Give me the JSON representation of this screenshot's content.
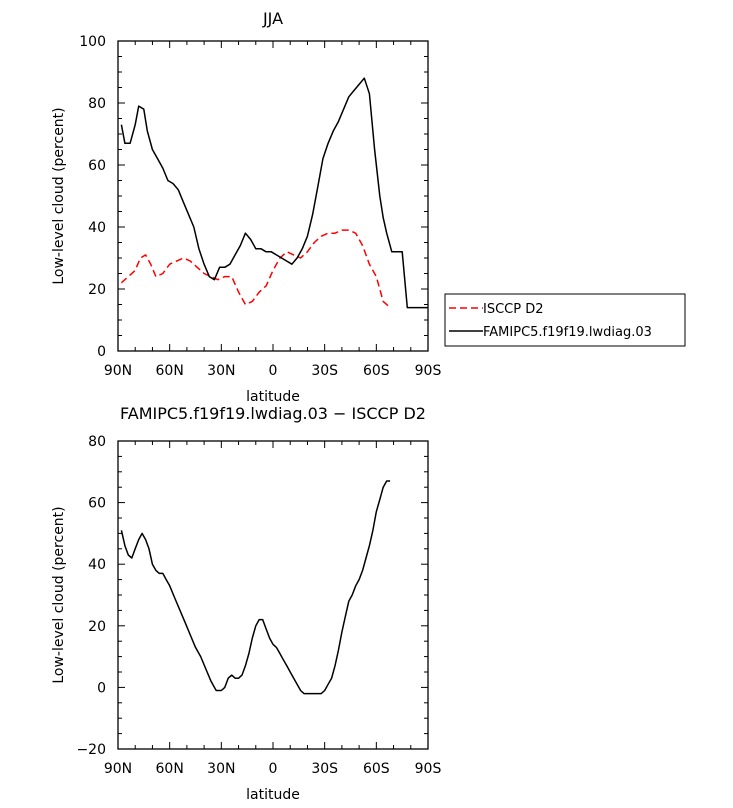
{
  "chart_data": [
    {
      "type": "line",
      "title": "JJA",
      "xlabel": "latitude",
      "ylabel": "Low-level cloud (percent)",
      "xlim": [
        90,
        -90
      ],
      "ylim": [
        0,
        100
      ],
      "xticks": [
        {
          "value": 90,
          "label": "90N"
        },
        {
          "value": 60,
          "label": "60N"
        },
        {
          "value": 30,
          "label": "30N"
        },
        {
          "value": 0,
          "label": "0"
        },
        {
          "value": -30,
          "label": "30S"
        },
        {
          "value": -60,
          "label": "60S"
        },
        {
          "value": -90,
          "label": "90S"
        }
      ],
      "yticks": [
        {
          "value": 0,
          "label": "0"
        },
        {
          "value": 20,
          "label": "20"
        },
        {
          "value": 40,
          "label": "40"
        },
        {
          "value": 60,
          "label": "60"
        },
        {
          "value": 80,
          "label": "80"
        },
        {
          "value": 100,
          "label": "100"
        }
      ],
      "legend": "right",
      "series": [
        {
          "name": "ISCCP D2",
          "color": "#ff0000",
          "dash": "dashed",
          "x": [
            88,
            84,
            80,
            77,
            74,
            71,
            68,
            64,
            60,
            56,
            52,
            48,
            44,
            40,
            36,
            32,
            28,
            24,
            20,
            16,
            12,
            8,
            4,
            0,
            -4,
            -8,
            -12,
            -16,
            -20,
            -24,
            -28,
            -32,
            -36,
            -40,
            -44,
            -48,
            -52,
            -56,
            -60,
            -64,
            -68
          ],
          "y": [
            22,
            24,
            26,
            30,
            31,
            28,
            24,
            25,
            28,
            29,
            30,
            29,
            27,
            25,
            24,
            23,
            24,
            24,
            19,
            15,
            16,
            19,
            21,
            26,
            30,
            32,
            31,
            30,
            32,
            35,
            37,
            38,
            38,
            39,
            39,
            38,
            34,
            28,
            24,
            16,
            14
          ]
        },
        {
          "name": "FAMIPC5.f19f19.lwdiag.03",
          "color": "#000000",
          "dash": "solid",
          "x": [
            88,
            86,
            83,
            80,
            78,
            75,
            73,
            70,
            67,
            64,
            61,
            58,
            55,
            52,
            49,
            46,
            43,
            40,
            37,
            34,
            31,
            28,
            25,
            22,
            19,
            16,
            13,
            10,
            7,
            4,
            1,
            -2,
            -5,
            -8,
            -11,
            -14,
            -17,
            -20,
            -23,
            -26,
            -29,
            -32,
            -35,
            -38,
            -41,
            -44,
            -47,
            -50,
            -53,
            -56,
            -59,
            -62,
            -64,
            -66,
            -69,
            -72,
            -75,
            -78,
            -81,
            -84,
            -87,
            -90
          ],
          "y": [
            73,
            67,
            67,
            73,
            79,
            78,
            71,
            65,
            62,
            59,
            55,
            54,
            52,
            48,
            44,
            40,
            33,
            28,
            24,
            23,
            27,
            27,
            28,
            31,
            34,
            38,
            36,
            33,
            33,
            32,
            32,
            31,
            30,
            29,
            28,
            30,
            33,
            37,
            44,
            53,
            62,
            67,
            71,
            74,
            78,
            82,
            84,
            86,
            88,
            83,
            65,
            50,
            43,
            38,
            32,
            32,
            32,
            14,
            14,
            14,
            14,
            14
          ]
        }
      ]
    },
    {
      "type": "line",
      "title": "FAMIPC5.f19f19.lwdiag.03 − ISCCP D2",
      "xlabel": "latitude",
      "ylabel": "Low-level cloud (percent)",
      "xlim": [
        90,
        -90
      ],
      "ylim": [
        -20,
        80
      ],
      "xticks": [
        {
          "value": 90,
          "label": "90N"
        },
        {
          "value": 60,
          "label": "60N"
        },
        {
          "value": 30,
          "label": "30N"
        },
        {
          "value": 0,
          "label": "0"
        },
        {
          "value": -30,
          "label": "30S"
        },
        {
          "value": -60,
          "label": "60S"
        },
        {
          "value": -90,
          "label": "90S"
        }
      ],
      "yticks": [
        {
          "value": -20,
          "label": "−20"
        },
        {
          "value": 0,
          "label": "0"
        },
        {
          "value": 20,
          "label": "20"
        },
        {
          "value": 40,
          "label": "40"
        },
        {
          "value": 60,
          "label": "60"
        },
        {
          "value": 80,
          "label": "80"
        }
      ],
      "series": [
        {
          "name": "",
          "color": "#000000",
          "dash": "solid",
          "x": [
            88,
            86,
            84,
            82,
            80,
            78,
            76,
            74,
            72,
            70,
            68,
            66,
            64,
            62,
            60,
            57,
            54,
            51,
            48,
            45,
            42,
            39,
            36,
            33,
            30,
            28,
            26,
            24,
            22,
            20,
            18,
            16,
            14,
            12,
            10,
            8,
            6,
            4,
            2,
            0,
            -2,
            -4,
            -6,
            -8,
            -10,
            -12,
            -14,
            -16,
            -18,
            -20,
            -22,
            -24,
            -26,
            -28,
            -30,
            -32,
            -34,
            -36,
            -38,
            -40,
            -42,
            -44,
            -46,
            -48,
            -50,
            -52,
            -54,
            -56,
            -58,
            -60,
            -62,
            -64,
            -66,
            -68
          ],
          "y": [
            51,
            46,
            43,
            42,
            45,
            48,
            50,
            48,
            45,
            40,
            38,
            37,
            37,
            35,
            33,
            29,
            25,
            21,
            17,
            13,
            10,
            6,
            2,
            -1,
            -1,
            0,
            3,
            4,
            3,
            3,
            4,
            7,
            11,
            16,
            20,
            22,
            22,
            19,
            16,
            14,
            13,
            11,
            9,
            7,
            5,
            3,
            1,
            -1,
            -2,
            -2,
            -2,
            -2,
            -2,
            -2,
            -1,
            1,
            3,
            7,
            12,
            18,
            23,
            28,
            30,
            33,
            35,
            38,
            42,
            46,
            51,
            57,
            61,
            65,
            67,
            67
          ]
        }
      ]
    }
  ]
}
